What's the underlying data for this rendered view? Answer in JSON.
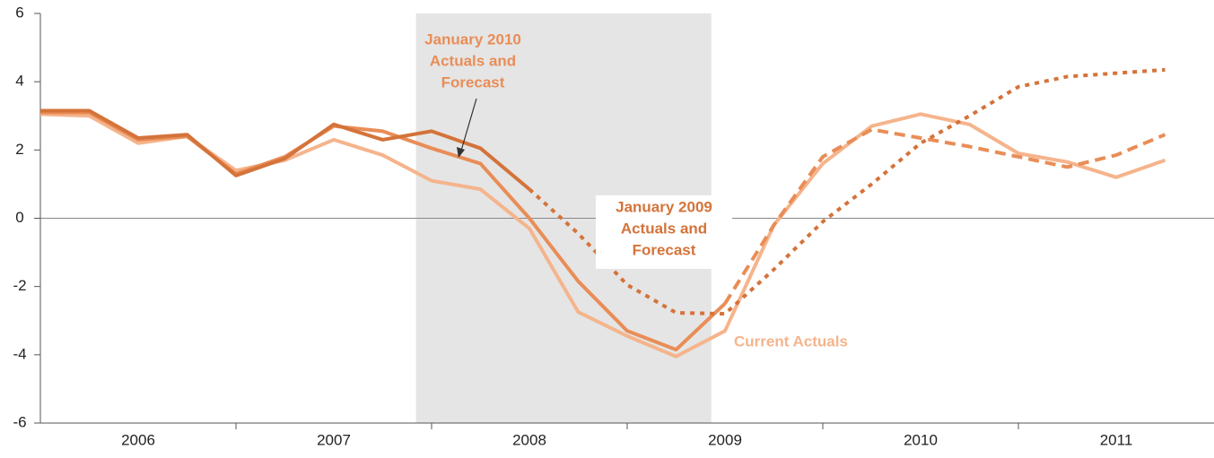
{
  "chart_data": {
    "type": "line",
    "categories": [
      "2006",
      "2007",
      "2008",
      "2009",
      "2010",
      "2011"
    ],
    "x": [
      2006,
      2006.25,
      2006.5,
      2006.75,
      2007,
      2007.25,
      2007.5,
      2007.75,
      2008,
      2008.25,
      2008.5,
      2008.75,
      2009,
      2009.25,
      2009.5,
      2009.75,
      2010,
      2010.25,
      2010.5,
      2010.75,
      2011,
      2011.25,
      2011.5,
      2011.75
    ],
    "xlim": [
      2006,
      2012
    ],
    "xtick_marks": [
      2007,
      2008,
      2009,
      2010,
      2011
    ],
    "ylim": [
      -6,
      6
    ],
    "yticks": [
      -6,
      -4,
      -2,
      0,
      2,
      4,
      6
    ],
    "shaded_period": [
      2007.92,
      2009.43
    ],
    "series": [
      {
        "color": "#d4733a",
        "dash": "solid",
        "values": [
          3.15,
          3.15,
          2.35,
          2.45,
          1.25,
          1.75,
          2.75,
          2.3,
          2.55,
          2.05,
          0.85,
          null,
          null,
          null,
          null,
          null,
          null,
          null,
          null,
          null,
          null,
          null,
          null,
          null
        ]
      },
      {
        "color": "#d4733a",
        "dash": "dotted",
        "values": [
          null,
          null,
          null,
          null,
          null,
          null,
          null,
          null,
          null,
          null,
          0.85,
          -0.45,
          -1.95,
          -2.77,
          -2.8,
          -1.5,
          -0.1,
          1.0,
          2.2,
          3.0,
          3.85,
          4.15,
          4.25,
          4.35
        ]
      },
      {
        "color": "#e98d57",
        "dash": "solid",
        "values": [
          3.1,
          3.1,
          2.3,
          2.4,
          1.3,
          1.8,
          2.7,
          2.55,
          2.05,
          1.6,
          0.0,
          -1.85,
          -3.3,
          -3.85,
          -2.5,
          null,
          null,
          null,
          null,
          null,
          null,
          null,
          null,
          null
        ]
      },
      {
        "color": "#e98d57",
        "dash": "dashed",
        "values": [
          null,
          null,
          null,
          null,
          null,
          null,
          null,
          null,
          null,
          null,
          null,
          null,
          null,
          null,
          -2.5,
          -0.2,
          1.8,
          2.6,
          2.35,
          2.1,
          1.8,
          1.5,
          1.85,
          2.45
        ]
      },
      {
        "color": "#f5b48c",
        "dash": "solid",
        "values": [
          3.05,
          3.0,
          2.2,
          2.4,
          1.4,
          1.7,
          2.3,
          1.85,
          1.1,
          0.85,
          -0.3,
          -2.75,
          -3.45,
          -4.05,
          -3.3,
          -0.2,
          1.6,
          2.7,
          3.05,
          2.75,
          1.9,
          1.65,
          1.2,
          1.7
        ]
      }
    ],
    "annotations": [
      {
        "lines": [
          "January 2010",
          "Actuals and",
          "Forecast"
        ],
        "color": "#e98d57"
      },
      {
        "lines": [
          "January 2009",
          "Actuals and",
          "Forecast"
        ],
        "color": "#d4733a"
      },
      {
        "lines": [
          "Current Actuals"
        ],
        "color": "#f5b48c"
      }
    ]
  }
}
